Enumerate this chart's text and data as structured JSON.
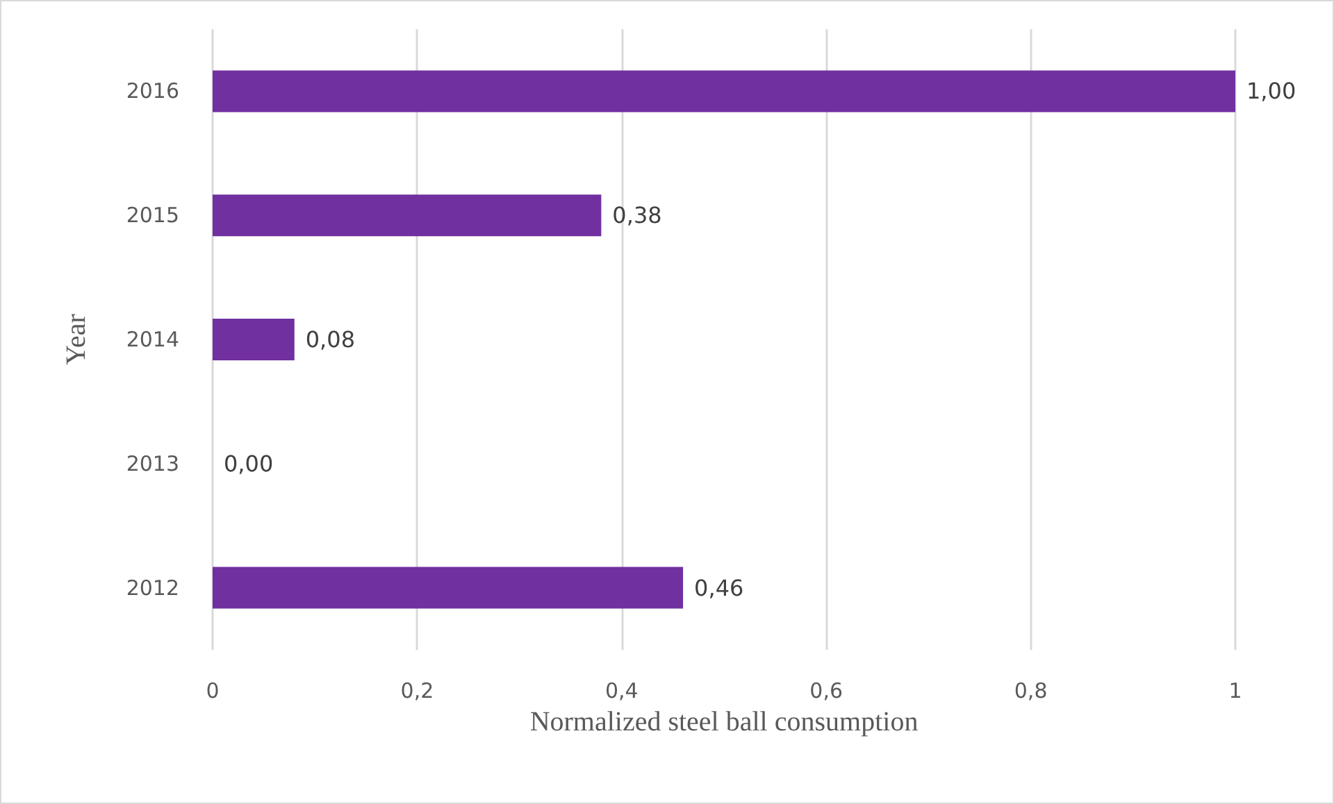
{
  "chart_data": {
    "type": "bar",
    "orientation": "horizontal",
    "xlabel": "Normalized steel ball consumption",
    "ylabel": "Year",
    "categories": [
      "2016",
      "2015",
      "2014",
      "2013",
      "2012"
    ],
    "values": [
      1.0,
      0.38,
      0.08,
      0.0,
      0.46
    ],
    "value_labels": [
      "1,00",
      "0,38",
      "0,08",
      "0,00",
      "0,46"
    ],
    "color": "#7030a0",
    "xlim": [
      0,
      1
    ],
    "xticks": [
      0,
      {
        "value": 0.2,
        "label": "0,2"
      },
      {
        "value": 0.4,
        "label": "0,4"
      },
      {
        "value": 0.6,
        "label": "0,6"
      },
      {
        "value": 0.8,
        "label": "0,8"
      },
      1
    ],
    "grid": "x"
  }
}
